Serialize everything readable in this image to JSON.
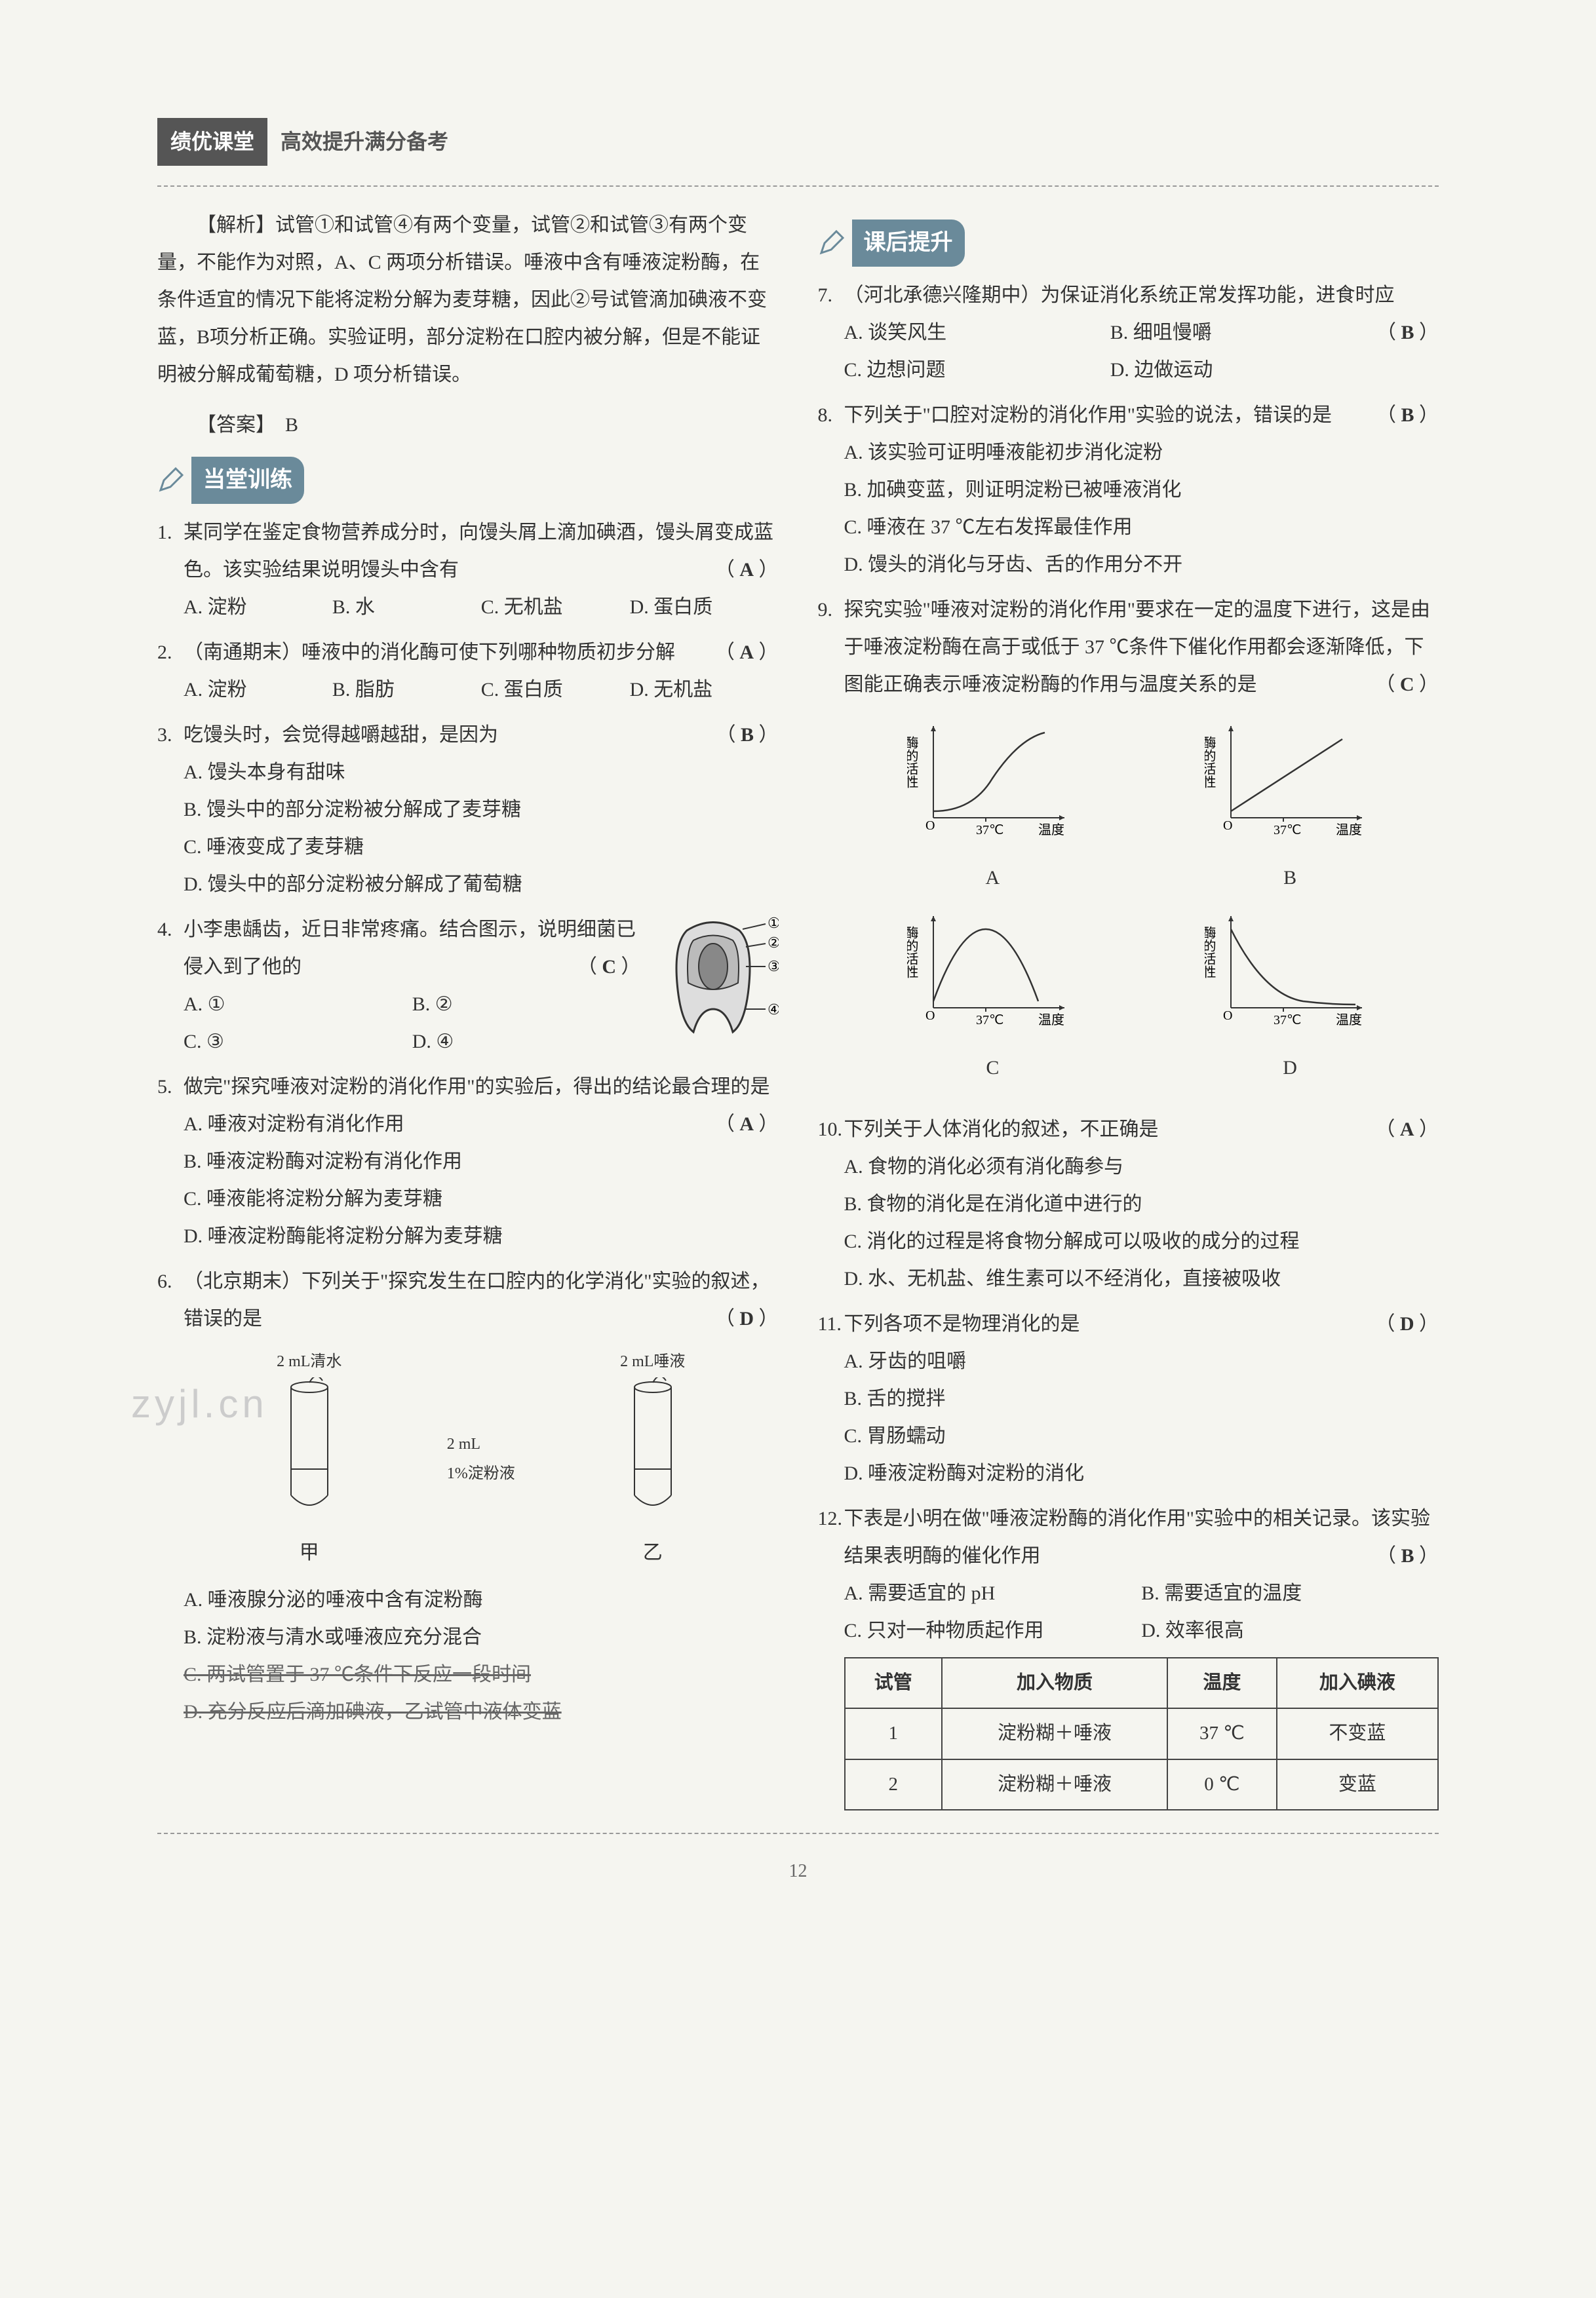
{
  "header": {
    "dark": "绩优课堂",
    "light": "高效提升满分备考"
  },
  "section_titles": {
    "classroom": "当堂训练",
    "after": "课后提升"
  },
  "explanation": {
    "label": "【解析】",
    "text": "试管①和试管④有两个变量，试管②和试管③有两个变量，不能作为对照，A、C 两项分析错误。唾液中含有唾液淀粉酶，在条件适宜的情况下能将淀粉分解为麦芽糖，因此②号试管滴加碘液不变蓝，B项分析正确。实验证明，部分淀粉在口腔内被分解，但是不能证明被分解成葡萄糖，D 项分析错误。"
  },
  "answer": {
    "label": "【答案】",
    "value": "B"
  },
  "left_q": [
    {
      "num": "1.",
      "text": "某同学在鉴定食物营养成分时，向馒头屑上滴加碘酒，馒头屑变成蓝色。该实验结果说明馒头中含有",
      "ans": "A",
      "opts": [
        {
          "k": "A.",
          "v": "淀粉",
          "w": "opt-4"
        },
        {
          "k": "B.",
          "v": "水",
          "w": "opt-4"
        },
        {
          "k": "C.",
          "v": "无机盐",
          "w": "opt-4"
        },
        {
          "k": "D.",
          "v": "蛋白质",
          "w": "opt-4"
        }
      ]
    },
    {
      "num": "2.",
      "text": "（南通期末）唾液中的消化酶可使下列哪种物质初步分解",
      "ans": "A",
      "opts": [
        {
          "k": "A.",
          "v": "淀粉",
          "w": "opt-4"
        },
        {
          "k": "B.",
          "v": "脂肪",
          "w": "opt-4"
        },
        {
          "k": "C.",
          "v": "蛋白质",
          "w": "opt-4"
        },
        {
          "k": "D.",
          "v": "无机盐",
          "w": "opt-4"
        }
      ]
    },
    {
      "num": "3.",
      "text": "吃馒头时，会觉得越嚼越甜，是因为",
      "ans": "B",
      "opts": [
        {
          "k": "A.",
          "v": "馒头本身有甜味",
          "w": "opt-1"
        },
        {
          "k": "B.",
          "v": "馒头中的部分淀粉被分解成了麦芽糖",
          "w": "opt-1"
        },
        {
          "k": "C.",
          "v": "唾液变成了麦芽糖",
          "w": "opt-1"
        },
        {
          "k": "D.",
          "v": "馒头中的部分淀粉被分解成了葡萄糖",
          "w": "opt-1"
        }
      ]
    },
    {
      "num": "4.",
      "text": "小李患龋齿，近日非常疼痛。结合图示，说明细菌已侵入到了他的",
      "ans": "C",
      "opts": [
        {
          "k": "A.",
          "v": "①",
          "w": "opt-2"
        },
        {
          "k": "B.",
          "v": "②",
          "w": "opt-2"
        },
        {
          "k": "C.",
          "v": "③",
          "w": "opt-2"
        },
        {
          "k": "D.",
          "v": "④",
          "w": "opt-2"
        }
      ],
      "tooth": true
    },
    {
      "num": "5.",
      "text": "做完\"探究唾液对淀粉的消化作用\"的实验后，得出的结论最合理的是",
      "ans": "A",
      "opts": [
        {
          "k": "A.",
          "v": "唾液对淀粉有消化作用",
          "w": "opt-1"
        },
        {
          "k": "B.",
          "v": "唾液淀粉酶对淀粉有消化作用",
          "w": "opt-1"
        },
        {
          "k": "C.",
          "v": "唾液能将淀粉分解为麦芽糖",
          "w": "opt-1"
        },
        {
          "k": "D.",
          "v": "唾液淀粉酶能将淀粉分解为麦芽糖",
          "w": "opt-1"
        }
      ]
    },
    {
      "num": "6.",
      "text": "（北京期末）下列关于\"探究发生在口腔内的化学消化\"实验的叙述，错误的是",
      "ans": "D",
      "opts": [
        {
          "k": "A.",
          "v": "唾液腺分泌的唾液中含有淀粉酶",
          "w": "opt-1"
        },
        {
          "k": "B.",
          "v": "淀粉液与清水或唾液应充分混合",
          "w": "opt-1"
        },
        {
          "k": "C.",
          "v": "两试管置于 37 ℃条件下反应一段时间",
          "w": "opt-1",
          "struck": true
        },
        {
          "k": "D.",
          "v": "充分反应后滴加碘液，乙试管中液体变蓝",
          "w": "opt-1",
          "struck": true
        }
      ],
      "tubes": true
    }
  ],
  "tubes": {
    "left_label": "2 mL清水",
    "right_label": "2 mL唾液",
    "mid_label": "2 mL\n1%淀粉液",
    "a": "甲",
    "b": "乙",
    "watermark": "zyjl.cn"
  },
  "right_q": [
    {
      "num": "7.",
      "text": "（河北承德兴隆期中）为保证消化系统正常发挥功能，进食时应",
      "ans": "B",
      "opts": [
        {
          "k": "A.",
          "v": "谈笑风生",
          "w": "opt-2"
        },
        {
          "k": "B.",
          "v": "细咀慢嚼",
          "w": "opt-2"
        },
        {
          "k": "C.",
          "v": "边想问题",
          "w": "opt-2"
        },
        {
          "k": "D.",
          "v": "边做运动",
          "w": "opt-2"
        }
      ]
    },
    {
      "num": "8.",
      "text": "下列关于\"口腔对淀粉的消化作用\"实验的说法，错误的是",
      "ans": "B",
      "opts": [
        {
          "k": "A.",
          "v": "该实验可证明唾液能初步消化淀粉",
          "w": "opt-1"
        },
        {
          "k": "B.",
          "v": "加碘变蓝，则证明淀粉已被唾液消化",
          "w": "opt-1"
        },
        {
          "k": "C.",
          "v": "唾液在 37 ℃左右发挥最佳作用",
          "w": "opt-1"
        },
        {
          "k": "D.",
          "v": "馒头的消化与牙齿、舌的作用分不开",
          "w": "opt-1"
        }
      ]
    },
    {
      "num": "9.",
      "text": "探究实验\"唾液对淀粉的消化作用\"要求在一定的温度下进行，这是由于唾液淀粉酶在高于或低于 37 ℃条件下催化作用都会逐渐降低，下图能正确表示唾液淀粉酶的作用与温度关系的是",
      "ans": "C",
      "graphs": true
    },
    {
      "num": "10.",
      "text": "下列关于人体消化的叙述，不正确是",
      "ans": "A",
      "opts": [
        {
          "k": "A.",
          "v": "食物的消化必须有消化酶参与",
          "w": "opt-1"
        },
        {
          "k": "B.",
          "v": "食物的消化是在消化道中进行的",
          "w": "opt-1"
        },
        {
          "k": "C.",
          "v": "消化的过程是将食物分解成可以吸收的成分的过程",
          "w": "opt-1"
        },
        {
          "k": "D.",
          "v": "水、无机盐、维生素可以不经消化，直接被吸收",
          "w": "opt-1"
        }
      ]
    },
    {
      "num": "11.",
      "text": "下列各项不是物理消化的是",
      "ans": "D",
      "opts": [
        {
          "k": "A.",
          "v": "牙齿的咀嚼",
          "w": "opt-1"
        },
        {
          "k": "B.",
          "v": "舌的搅拌",
          "w": "opt-1"
        },
        {
          "k": "C.",
          "v": "胃肠蠕动",
          "w": "opt-1"
        },
        {
          "k": "D.",
          "v": "唾液淀粉酶对淀粉的消化",
          "w": "opt-1"
        }
      ]
    },
    {
      "num": "12.",
      "text": "下表是小明在做\"唾液淀粉酶的消化作用\"实验中的相关记录。该实验结果表明酶的催化作用",
      "ans": "B",
      "table": true,
      "opts": [
        {
          "k": "A.",
          "v": "需要适宜的 pH",
          "w": "opt-2"
        },
        {
          "k": "B.",
          "v": "需要适宜的温度",
          "w": "opt-2"
        },
        {
          "k": "C.",
          "v": "只对一种物质起作用",
          "w": "opt-2"
        },
        {
          "k": "D.",
          "v": "效率很高",
          "w": "opt-2"
        }
      ]
    }
  ],
  "graphs": {
    "y_label": "酶的活性",
    "x_label": "温度",
    "tick": "37℃",
    "origin": "O",
    "labels": [
      "A",
      "B",
      "C",
      "D"
    ],
    "axis_color": "#333",
    "curve_color": "#333",
    "stroke_width": 2.5
  },
  "table": {
    "headers": [
      "试管",
      "加入物质",
      "温度",
      "加入碘液"
    ],
    "rows": [
      [
        "1",
        "淀粉糊＋唾液",
        "37 ℃",
        "不变蓝"
      ],
      [
        "2",
        "淀粉糊＋唾液",
        "0 ℃",
        "变蓝"
      ]
    ]
  },
  "page_number": "12",
  "colors": {
    "header_dark_bg": "#555555",
    "section_bg": "#6a8a9a",
    "text": "#333333",
    "page_bg": "#f5f5f0"
  }
}
